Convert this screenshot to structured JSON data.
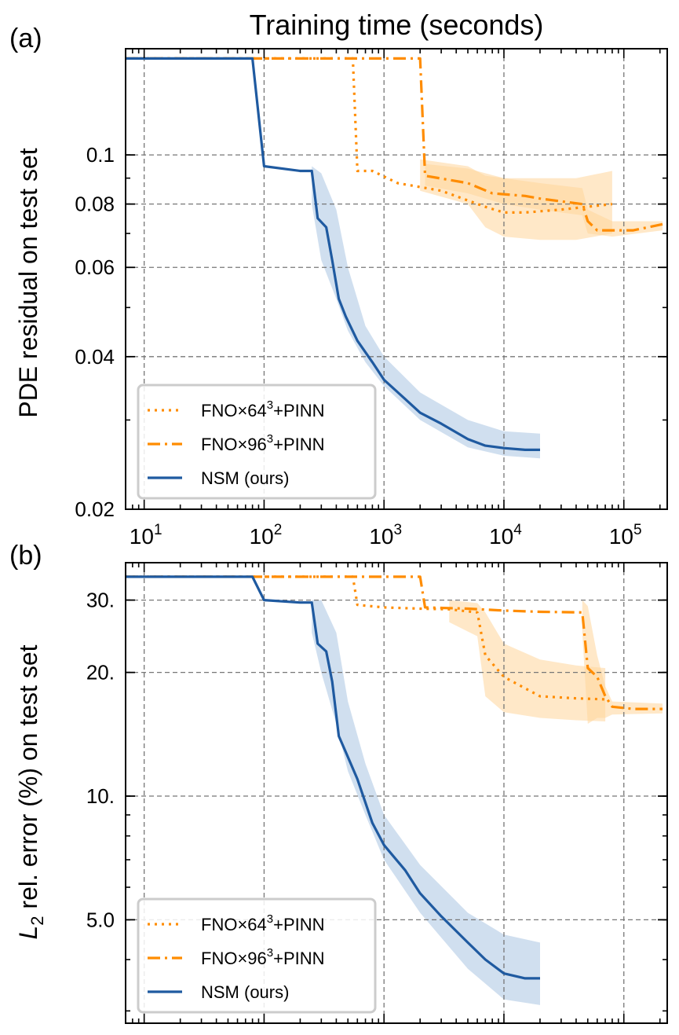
{
  "figure": {
    "top_label": "Training time (seconds)"
  },
  "chart_data": [
    {
      "type": "line",
      "panel_label": "(a)",
      "ylabel": "PDE residual on test set",
      "xlabel": "Training time (seconds)",
      "xscale": "log",
      "yscale": "log",
      "xlim": [
        7,
        230000
      ],
      "ylim": [
        0.02,
        0.162
      ],
      "x_ticks": [
        10,
        100,
        1000,
        10000,
        100000
      ],
      "x_tick_labels": [
        {
          "base": "10",
          "exp": "1"
        },
        {
          "base": "10",
          "exp": "2"
        },
        {
          "base": "10",
          "exp": "3"
        },
        {
          "base": "10",
          "exp": "4"
        },
        {
          "base": "10",
          "exp": "5"
        }
      ],
      "y_ticks": [
        0.02,
        0.04,
        0.06,
        0.08,
        0.1
      ],
      "y_tick_labels": [
        "0.02",
        "0.04",
        "0.06",
        "0.08",
        "0.1"
      ],
      "grid": true,
      "legend_position": "lower-left",
      "legend": [
        {
          "pre": "FNO×64",
          "sup": "3",
          "post": "+PINN",
          "style": "dotted"
        },
        {
          "pre": "FNO×96",
          "sup": "3",
          "post": "+PINN",
          "style": "dashdot"
        },
        {
          "pre": "NSM (ours)",
          "sup": "",
          "post": "",
          "style": "solid"
        }
      ],
      "series": [
        {
          "name": "FNO×64³+PINN",
          "style": "dotted",
          "color": "#ff8c00",
          "x": [
            7,
            550,
            600,
            800,
            1300,
            3000,
            7000,
            10000,
            15000,
            30000,
            80000
          ],
          "y": [
            0.155,
            0.155,
            0.093,
            0.093,
            0.088,
            0.085,
            0.079,
            0.077,
            0.077,
            0.078,
            0.08
          ],
          "band_x": [
            2000,
            5000,
            7000,
            10000,
            20000,
            40000,
            80000
          ],
          "band_low": [
            0.085,
            0.08,
            0.072,
            0.069,
            0.068,
            0.068,
            0.07
          ],
          "band_high": [
            0.098,
            0.095,
            0.091,
            0.09,
            0.09,
            0.09,
            0.093
          ]
        },
        {
          "name": "FNO×96³+PINN",
          "style": "dashdot",
          "color": "#ff8c00",
          "x": [
            7,
            2000,
            2200,
            5000,
            8000,
            15000,
            20000,
            45000,
            50000,
            60000,
            80000,
            120000,
            210000
          ],
          "y": [
            0.155,
            0.155,
            0.091,
            0.088,
            0.084,
            0.083,
            0.082,
            0.08,
            0.074,
            0.071,
            0.071,
            0.071,
            0.073
          ],
          "band_x": [
            2200,
            5000,
            10000,
            20000,
            45000,
            50000,
            80000,
            210000
          ],
          "band_low": [
            0.087,
            0.084,
            0.08,
            0.078,
            0.076,
            0.07,
            0.069,
            0.071
          ],
          "band_high": [
            0.096,
            0.094,
            0.09,
            0.088,
            0.086,
            0.078,
            0.074,
            0.074
          ]
        },
        {
          "name": "NSM (ours)",
          "style": "solid",
          "color": "#1f5aa0",
          "x": [
            7,
            80,
            100,
            200,
            250,
            280,
            330,
            370,
            420,
            480,
            600,
            800,
            1000,
            1500,
            2000,
            3000,
            5000,
            7000,
            10000,
            15000,
            20000
          ],
          "y": [
            0.155,
            0.155,
            0.095,
            0.093,
            0.093,
            0.075,
            0.072,
            0.062,
            0.052,
            0.048,
            0.043,
            0.039,
            0.036,
            0.033,
            0.031,
            0.0295,
            0.0275,
            0.0267,
            0.0264,
            0.0262,
            0.0262
          ],
          "band_x": [
            250,
            300,
            400,
            500,
            700,
            1000,
            2000,
            5000,
            10000,
            20000
          ],
          "band_low": [
            0.08,
            0.062,
            0.052,
            0.045,
            0.039,
            0.035,
            0.03,
            0.0265,
            0.0255,
            0.0252
          ],
          "band_high": [
            0.095,
            0.092,
            0.078,
            0.06,
            0.046,
            0.04,
            0.034,
            0.03,
            0.0285,
            0.0282
          ]
        }
      ]
    },
    {
      "type": "line",
      "panel_label": "(b)",
      "ylabel": "L₂ rel. error (%) on test set",
      "ylabel_parts": {
        "pre": "L",
        "sub": "2",
        "post": " rel. error (%) on test set"
      },
      "xscale": "log",
      "yscale": "log",
      "xlim": [
        7,
        230000
      ],
      "ylim": [
        2.8,
        37
      ],
      "x_ticks": [
        10,
        100,
        1000,
        10000,
        100000
      ],
      "y_ticks": [
        5,
        10,
        20,
        30
      ],
      "y_tick_labels": [
        "5.0",
        "10.",
        "20.",
        "30."
      ],
      "grid": true,
      "legend_position": "lower-left",
      "legend": [
        {
          "pre": "FNO×64",
          "sup": "3",
          "post": "+PINN",
          "style": "dotted"
        },
        {
          "pre": "FNO×96",
          "sup": "3",
          "post": "+PINN",
          "style": "dashdot"
        },
        {
          "pre": "NSM (ours)",
          "sup": "",
          "post": "",
          "style": "solid"
        }
      ],
      "series": [
        {
          "name": "FNO×64³+PINN",
          "style": "dotted",
          "color": "#ff8c00",
          "x": [
            7,
            550,
            600,
            1000,
            2000,
            3500,
            6000,
            7000,
            10000,
            20000,
            40000,
            70000
          ],
          "y": [
            34.2,
            34.2,
            29.2,
            28.8,
            28.6,
            28.5,
            28.0,
            22.0,
            19.5,
            17.5,
            17.3,
            17.2
          ],
          "band_x": [
            3500,
            6000,
            7000,
            10000,
            20000,
            40000,
            70000
          ],
          "band_low": [
            26.5,
            24.5,
            17.5,
            16.0,
            15.5,
            15.3,
            15.2
          ],
          "band_high": [
            30.0,
            29.5,
            28.0,
            23.5,
            21.5,
            20.8,
            20.5
          ]
        },
        {
          "name": "FNO×96³+PINN",
          "style": "dashdot",
          "color": "#ff8c00",
          "x": [
            7,
            2000,
            2200,
            5000,
            10000,
            20000,
            45000,
            50000,
            60000,
            70000,
            80000,
            120000,
            210000
          ],
          "y": [
            34.2,
            34.2,
            28.8,
            28.6,
            28.3,
            28.1,
            28.0,
            20.5,
            19.5,
            17.5,
            16.5,
            16.3,
            16.3
          ],
          "band_x": [
            45000,
            50000,
            60000,
            70000,
            80000,
            210000
          ],
          "band_low": [
            25.0,
            15.0,
            15.5,
            15.5,
            15.8,
            15.9
          ],
          "band_high": [
            30.0,
            29.0,
            22.0,
            18.5,
            17.0,
            16.8
          ]
        },
        {
          "name": "NSM (ours)",
          "style": "solid",
          "color": "#1f5aa0",
          "x": [
            7,
            80,
            100,
            200,
            250,
            280,
            330,
            370,
            420,
            480,
            600,
            800,
            1000,
            1500,
            2000,
            3000,
            5000,
            7000,
            10000,
            15000,
            20000
          ],
          "y": [
            34.2,
            34.2,
            30.0,
            29.6,
            29.6,
            23.5,
            22.5,
            19.0,
            14.0,
            12.8,
            11.0,
            8.6,
            7.6,
            6.6,
            5.8,
            5.1,
            4.4,
            4.0,
            3.7,
            3.6,
            3.6
          ],
          "band_x": [
            250,
            300,
            400,
            500,
            700,
            1000,
            2000,
            5000,
            10000,
            20000
          ],
          "band_low": [
            25.0,
            20.0,
            15.0,
            11.5,
            9.0,
            7.0,
            5.2,
            3.8,
            3.2,
            3.1
          ],
          "band_high": [
            30.0,
            30.0,
            25.0,
            17.0,
            12.0,
            9.0,
            6.8,
            5.2,
            4.6,
            4.4
          ]
        }
      ]
    }
  ]
}
